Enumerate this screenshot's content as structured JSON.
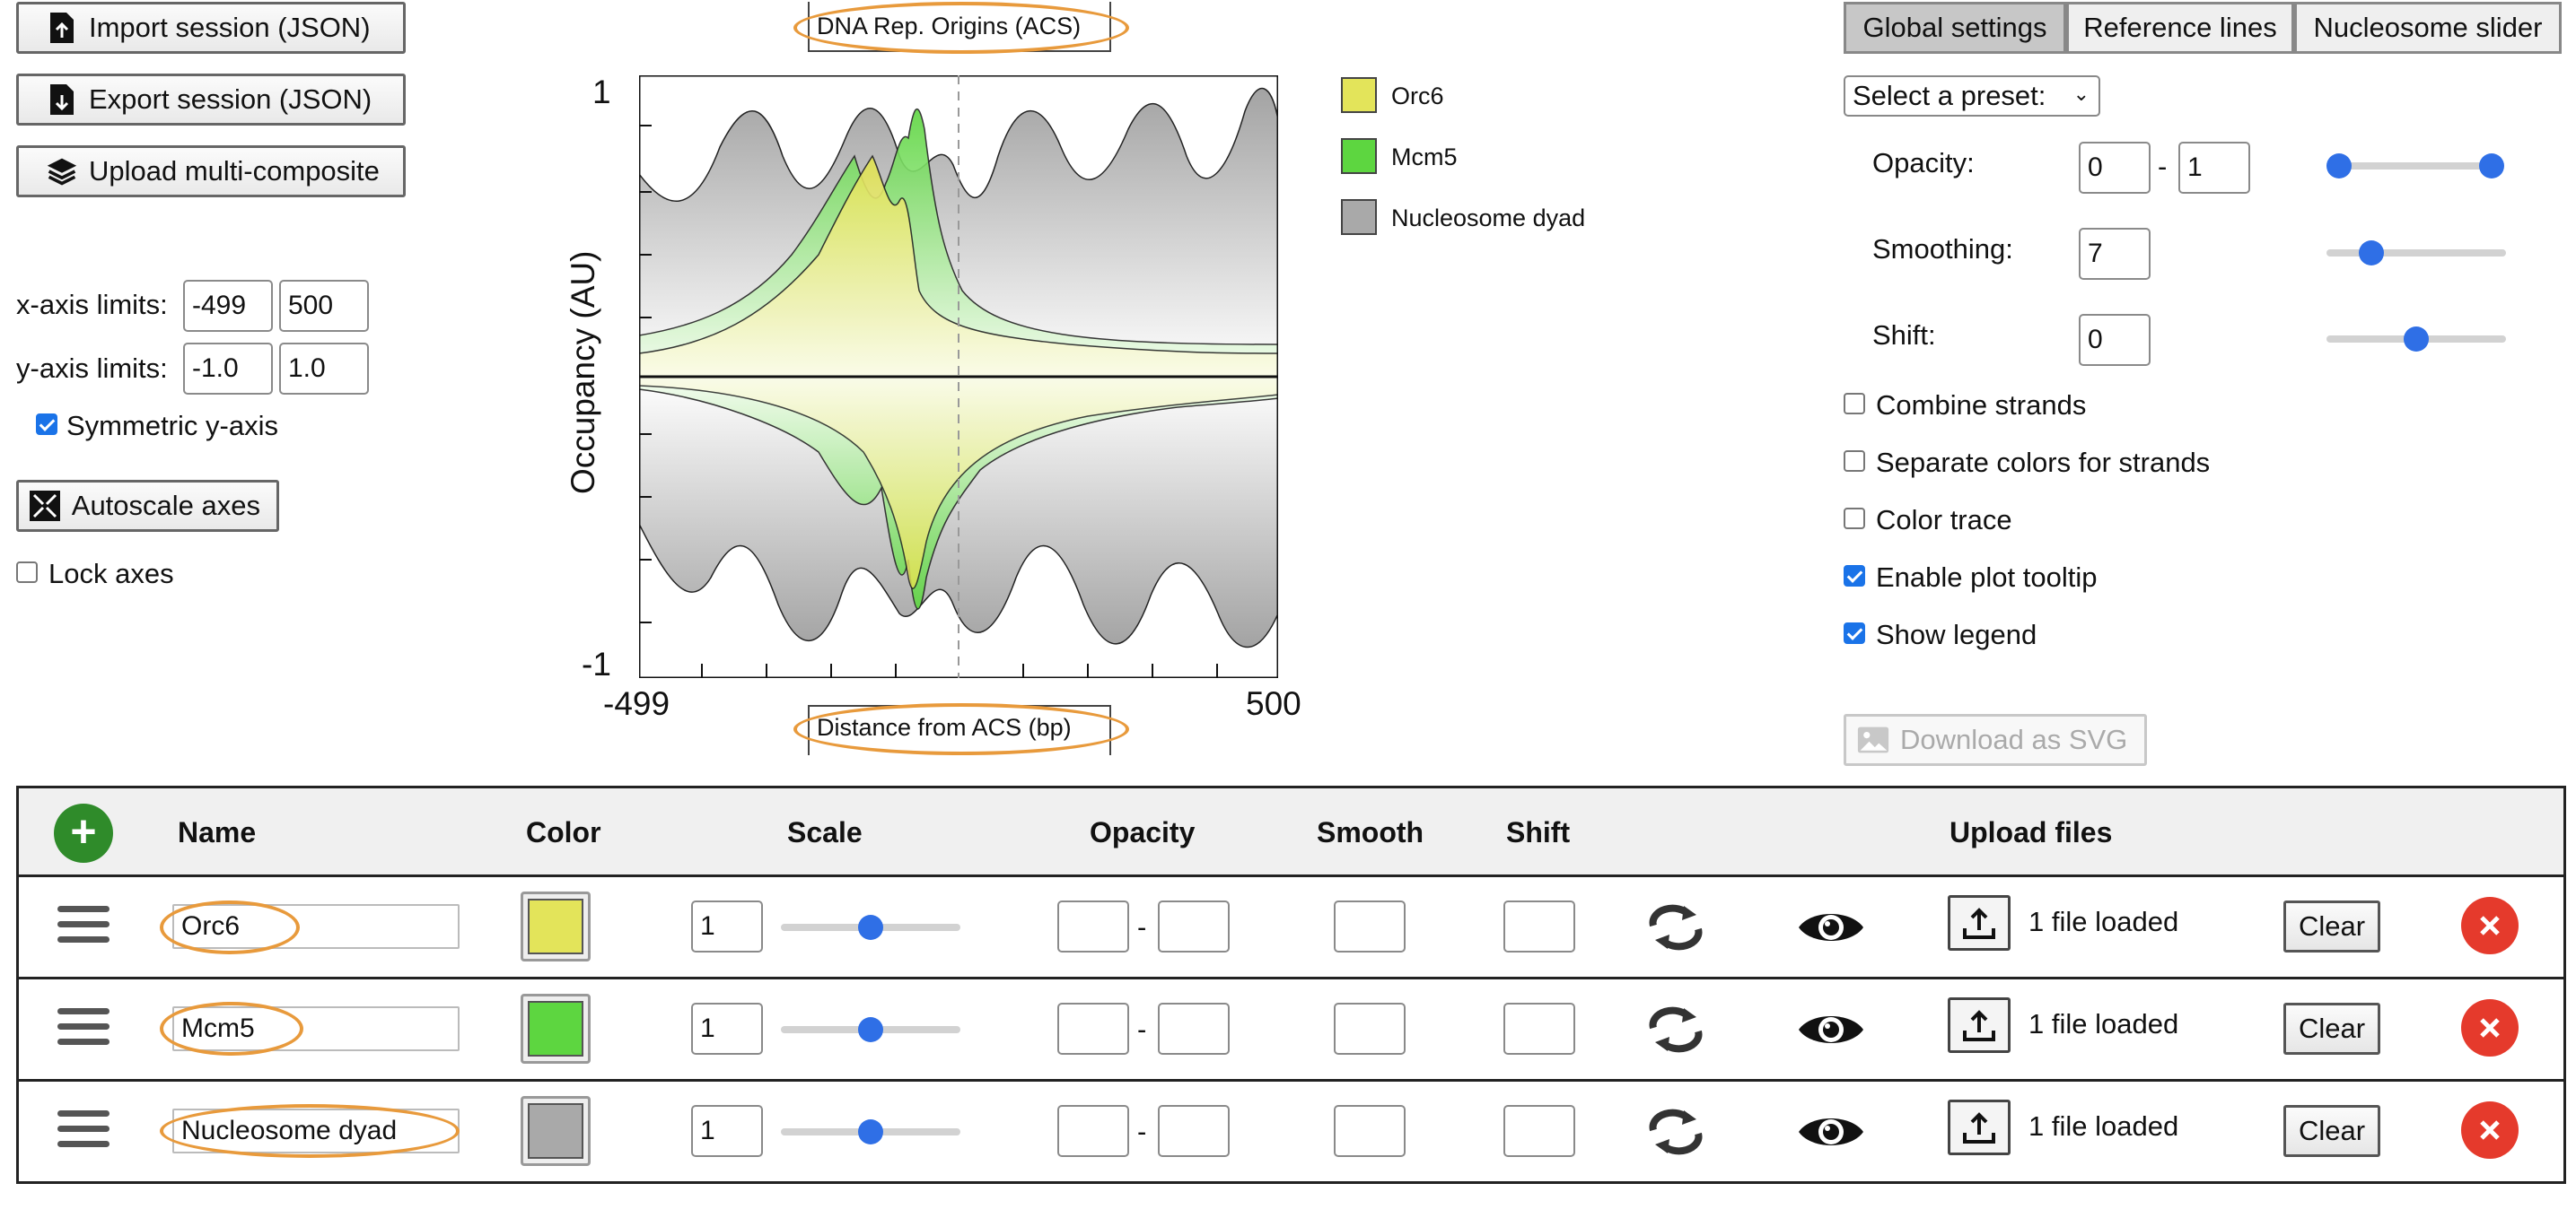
{
  "session": {
    "import_label": "Import session (JSON)",
    "export_label": "Export session (JSON)",
    "upload_multi_label": "Upload multi-composite"
  },
  "axes": {
    "x_label": "x-axis limits:",
    "x_min": "-499",
    "x_max": "500",
    "y_label": "y-axis limits:",
    "y_min": "-1.0",
    "y_max": "1.0",
    "symmetric_label": "Symmetric y-axis",
    "symmetric_checked": true,
    "autoscale_label": "Autoscale axes",
    "lock_label": "Lock axes",
    "lock_checked": false
  },
  "plot": {
    "title": "DNA Rep. Origins (ACS)",
    "xlabel": "Distance from ACS (bp)",
    "ylabel": "Occupancy (AU)",
    "ytick_top": "1",
    "ytick_bottom": "-1",
    "xtick_left": "-499",
    "xtick_right": "500"
  },
  "legend": [
    {
      "name": "Orc6",
      "color": "#e3e45a"
    },
    {
      "name": "Mcm5",
      "color": "#5dd640"
    },
    {
      "name": "Nucleosome dyad",
      "color": "#a9a9a9"
    }
  ],
  "settings": {
    "tabs": [
      "Global settings",
      "Reference lines",
      "Nucleosome slider"
    ],
    "preset_label": "Select a preset:",
    "opacity_label": "Opacity:",
    "opacity_min": "0",
    "opacity_max": "1",
    "opacity_dash": "-",
    "smoothing_label": "Smoothing:",
    "smoothing_value": "7",
    "shift_label": "Shift:",
    "shift_value": "0",
    "opacity_slider_low": 0.0,
    "opacity_slider_high": 1.0,
    "smoothing_slider": 0.25,
    "shift_slider": 0.5,
    "options": [
      {
        "label": "Combine strands",
        "checked": false
      },
      {
        "label": "Separate colors for strands",
        "checked": false
      },
      {
        "label": "Color trace",
        "checked": false
      },
      {
        "label": "Enable plot tooltip",
        "checked": true
      },
      {
        "label": "Show legend",
        "checked": true
      }
    ],
    "download_label": "Download as SVG"
  },
  "table": {
    "headers": {
      "name": "Name",
      "color": "Color",
      "scale": "Scale",
      "opacity": "Opacity",
      "smooth": "Smooth",
      "shift": "Shift",
      "upload": "Upload files"
    },
    "rows": [
      {
        "name": "Orc6",
        "color": "#e3e45a",
        "scale": "1",
        "scale_slider": 0.5,
        "status": "1 file loaded",
        "clear": "Clear"
      },
      {
        "name": "Mcm5",
        "color": "#5dd640",
        "scale": "1",
        "scale_slider": 0.5,
        "status": "1 file loaded",
        "clear": "Clear"
      },
      {
        "name": "Nucleosome dyad",
        "color": "#a9a9a9",
        "scale": "1",
        "scale_slider": 0.5,
        "status": "1 file loaded",
        "clear": "Clear"
      }
    ]
  }
}
